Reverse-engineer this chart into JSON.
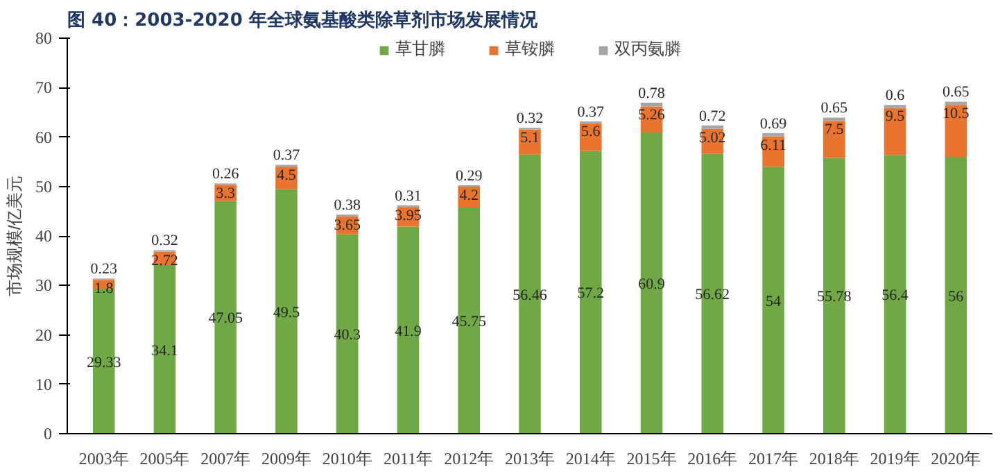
{
  "chart_data": {
    "type": "bar",
    "title": "图 40：2003-2020 年全球氨基酸类除草剂市场发展情况",
    "ylabel": "市场规模/亿美元",
    "stacked": true,
    "data_labels": true,
    "legend": "top",
    "grid": false,
    "categories": [
      "2003年",
      "2005年",
      "2007年",
      "2009年",
      "2010年",
      "2011年",
      "2012年",
      "2013年",
      "2014年",
      "2015年",
      "2016年",
      "2017年",
      "2018年",
      "2019年",
      "2020年"
    ],
    "ylim": [
      0,
      80
    ],
    "yticks": [
      0,
      10,
      20,
      30,
      40,
      50,
      60,
      70,
      80
    ],
    "series": [
      {
        "name": "草甘膦",
        "color": "#70a845",
        "values": [
          29.33,
          34.1,
          47.05,
          49.5,
          40.3,
          41.9,
          45.75,
          56.46,
          57.2,
          60.9,
          56.62,
          54,
          55.78,
          56.4,
          56
        ]
      },
      {
        "name": "草铵膦",
        "color": "#e8742f",
        "values": [
          1.8,
          2.72,
          3.3,
          4.5,
          3.65,
          3.95,
          4.2,
          5.1,
          5.6,
          5.26,
          5.02,
          6.11,
          7.5,
          9.5,
          10.5
        ]
      },
      {
        "name": "双丙氨膦",
        "color": "#a6a6a6",
        "values": [
          0.23,
          0.32,
          0.26,
          0.37,
          0.38,
          0.31,
          0.29,
          0.32,
          0.37,
          0.78,
          0.72,
          0.69,
          0.65,
          0.6,
          0.65
        ]
      }
    ]
  }
}
